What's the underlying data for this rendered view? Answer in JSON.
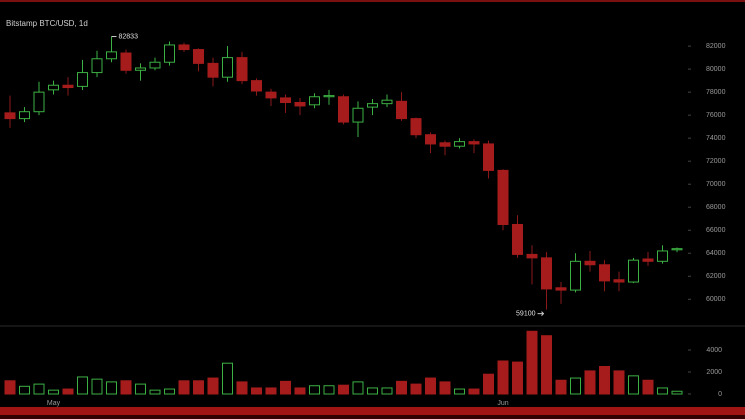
{
  "chart_data": {
    "type": "candlestick",
    "title": "Bitstamp BTC/USD, 1d",
    "categories": [
      null,
      null,
      null,
      "May",
      null,
      null,
      null,
      null,
      null,
      null,
      null,
      null,
      null,
      null,
      null,
      null,
      null,
      null,
      null,
      null,
      null,
      null,
      null,
      null,
      null,
      null,
      null,
      null,
      null,
      null,
      null,
      null,
      null,
      null,
      "Jun",
      null,
      null,
      null,
      null,
      null,
      null,
      null,
      null,
      null,
      null,
      null,
      null
    ],
    "open": [
      76200,
      75700,
      76300,
      78200,
      78600,
      78500,
      79700,
      80900,
      81400,
      79900,
      80100,
      80600,
      82100,
      81700,
      80500,
      79300,
      81000,
      79000,
      78000,
      77500,
      77100,
      76900,
      77600,
      77600,
      75400,
      76700,
      77000,
      77200,
      75700,
      74300,
      73600,
      73300,
      73700,
      73500,
      71200,
      66500,
      63900,
      63600,
      61000,
      60800,
      63300,
      63000,
      61700,
      61500,
      63500,
      63300,
      64300
    ],
    "high": [
      77700,
      76700,
      78900,
      79000,
      79300,
      80800,
      81600,
      82833,
      81700,
      80500,
      81000,
      82400,
      82300,
      81800,
      81000,
      82000,
      81500,
      79200,
      78300,
      77800,
      77500,
      77900,
      78200,
      77800,
      77200,
      77400,
      77800,
      78000,
      75800,
      74500,
      73800,
      74000,
      73900,
      73800,
      71300,
      67300,
      64700,
      64100,
      61500,
      64000,
      64200,
      63400,
      62400,
      63600,
      64100,
      64700,
      64500
    ],
    "low": [
      74900,
      75400,
      76000,
      77800,
      77700,
      78200,
      79300,
      80600,
      79600,
      79000,
      79900,
      80300,
      81500,
      79800,
      78500,
      78900,
      78700,
      77700,
      76800,
      76200,
      76000,
      76600,
      76900,
      75200,
      74100,
      76000,
      76700,
      75500,
      74000,
      72700,
      72500,
      73100,
      72700,
      70500,
      66000,
      63600,
      61300,
      59100,
      59600,
      60600,
      62400,
      60700,
      60700,
      61400,
      62900,
      63100,
      64100
    ],
    "close": [
      75700,
      76300,
      78000,
      78600,
      78400,
      79700,
      80900,
      81500,
      79900,
      80100,
      80600,
      82100,
      81700,
      80500,
      79300,
      81000,
      79000,
      78100,
      77500,
      77100,
      76800,
      77600,
      77700,
      75400,
      76600,
      77000,
      77300,
      75700,
      74300,
      73500,
      73300,
      73700,
      73500,
      71200,
      66500,
      63900,
      63600,
      60900,
      60800,
      63300,
      63000,
      61600,
      61500,
      63400,
      63300,
      64200,
      64400
    ],
    "up_color": "#3cb043",
    "down_color": "#a61c1c",
    "ylim": [
      58200,
      83400
    ],
    "yticks": [
      60000,
      62000,
      64000,
      66000,
      68000,
      70000,
      72000,
      74000,
      76000,
      78000,
      80000,
      82000
    ],
    "volume": {
      "values": [
        1200,
        700,
        900,
        350,
        450,
        1550,
        1350,
        1100,
        1200,
        900,
        350,
        450,
        1200,
        1200,
        1450,
        2800,
        1100,
        550,
        550,
        1150,
        550,
        750,
        750,
        800,
        1100,
        550,
        550,
        1150,
        900,
        1450,
        1100,
        450,
        450,
        1800,
        3000,
        2900,
        5700,
        5300,
        1250,
        1450,
        2100,
        2500,
        2100,
        1650,
        1250,
        550,
        250
      ],
      "ylim": [
        0,
        6000
      ],
      "yticks": [
        0,
        2000,
        4000
      ]
    }
  }
}
